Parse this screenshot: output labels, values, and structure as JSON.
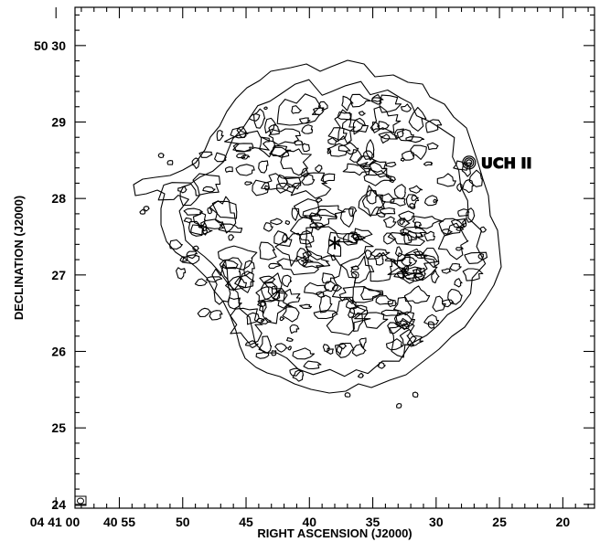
{
  "chart_data": {
    "type": "contour",
    "xlabel": "RIGHT ASCENSION (J2000)",
    "ylabel": "DECLINATION (J2000)",
    "x_axis": {
      "unit": "seconds of RA (offset from 04 41 00)",
      "range": [
        1.5,
        42.5
      ],
      "ticks": [
        {
          "value": 0,
          "label": "04 41 00"
        },
        {
          "value": 5,
          "label": "40 55"
        },
        {
          "value": 10,
          "label": "50"
        },
        {
          "value": 15,
          "label": "45"
        },
        {
          "value": 20,
          "label": "40"
        },
        {
          "value": 25,
          "label": "35"
        },
        {
          "value": 30,
          "label": "30"
        },
        {
          "value": 35,
          "label": "25"
        },
        {
          "value": 40,
          "label": "20"
        }
      ]
    },
    "y_axis": {
      "unit": "arcmin (offset from +50 00)",
      "range": [
        23.95,
        30.5
      ],
      "ticks": [
        {
          "value": 24,
          "label": "24"
        },
        {
          "value": 25,
          "label": "25"
        },
        {
          "value": 26,
          "label": "26"
        },
        {
          "value": 27,
          "label": "27"
        },
        {
          "value": 28,
          "label": "28"
        },
        {
          "value": 29,
          "label": "29"
        },
        {
          "value": 30,
          "label": "50 30"
        }
      ]
    },
    "grid": false,
    "annotations": [
      {
        "label": "UCH II",
        "marker": "concentric-circles",
        "x": 32.6,
        "y": 28.47
      },
      {
        "label": "",
        "marker": "asterisk",
        "x": 22.0,
        "y": 27.42
      },
      {
        "label": "",
        "marker": "beam-ellipse",
        "x": 0.5,
        "y": 24.0
      }
    ]
  }
}
